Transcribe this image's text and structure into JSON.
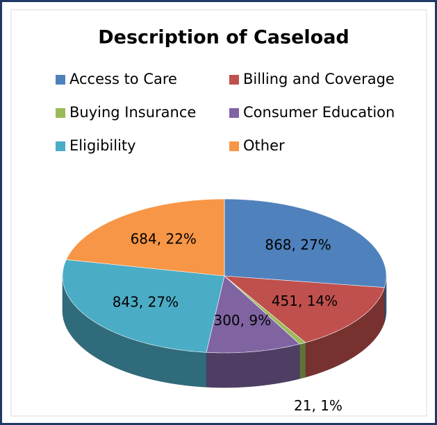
{
  "chart_data": {
    "type": "pie3d",
    "title": "Description of Caseload",
    "categories": [
      "Access to Care",
      "Billing and Coverage",
      "Buying Insurance",
      "Consumer Education",
      "Eligibility",
      "Other"
    ],
    "values": [
      868,
      451,
      21,
      300,
      843,
      684
    ],
    "value_labels": [
      "868, 27%",
      "451, 14%",
      "21, 1%",
      "300, 9%",
      "843, 27%",
      "684, 22%"
    ],
    "colors": [
      "#4f81bd",
      "#c0504d",
      "#9bbb59",
      "#8064a2",
      "#4bacc6",
      "#f79646"
    ],
    "legend": "top"
  }
}
